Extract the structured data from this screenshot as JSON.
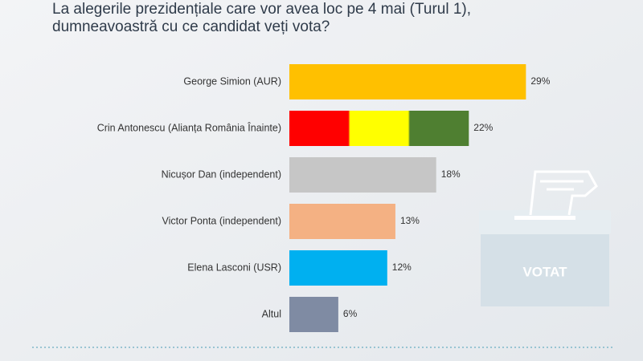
{
  "chart_data": {
    "type": "hbar",
    "title_lines": [
      "La alegerile prezidențiale care vor avea loc pe 4 mai (Turul 1),",
      "dumneavoastră cu ce candidat veți vota?"
    ],
    "categories": [
      "George Simion (AUR)",
      "Crin Antonescu (Alianța România Înainte)",
      "Nicușor Dan (independent)",
      "Victor Ponta (independent)",
      "Elena Lasconi (USR)",
      "Altul"
    ],
    "values": [
      29,
      22,
      18,
      13,
      12,
      6
    ],
    "value_labels": [
      "29%",
      "22%",
      "18%",
      "13%",
      "12%",
      "6%"
    ],
    "colors": [
      "#ffc000",
      [
        "#ff0000",
        "#ffff00",
        "#4f7f31"
      ],
      "#c6c6c6",
      "#f4b183",
      "#00b0f0",
      "#7f8ba3"
    ],
    "icon_text": "VOTAT"
  }
}
